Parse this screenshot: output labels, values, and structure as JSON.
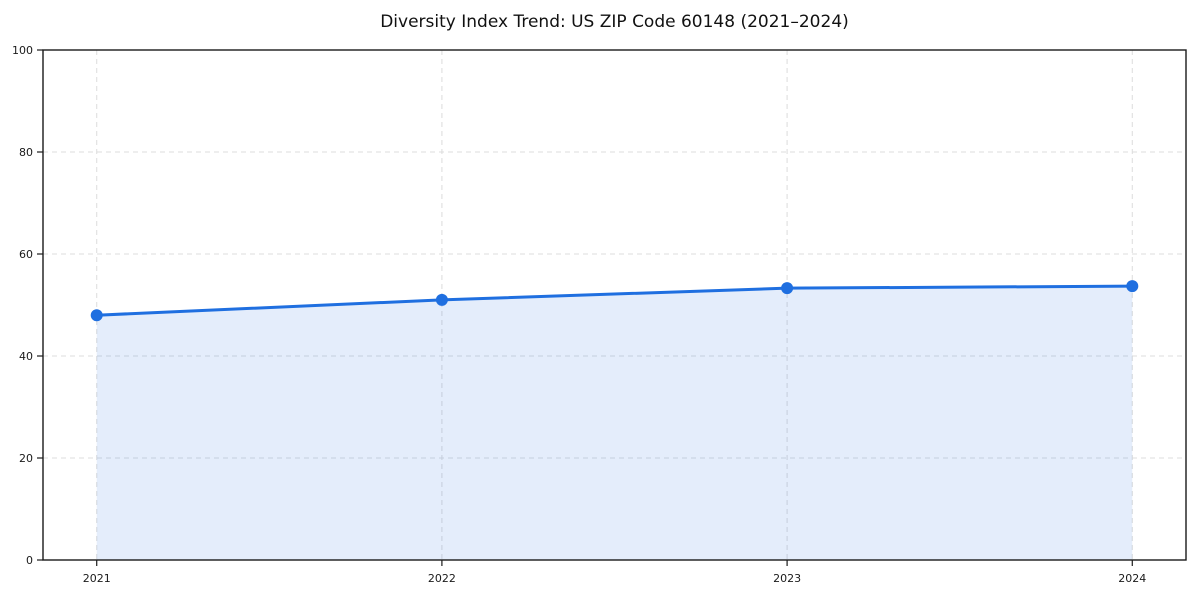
{
  "page": {
    "background": "#ffffff"
  },
  "chart_data": {
    "type": "area",
    "title": "Diversity Index Trend: US ZIP Code 60148 (2021–2024)",
    "categories": [
      "2021",
      "2022",
      "2023",
      "2024"
    ],
    "series": [
      {
        "name": "Diversity Index",
        "values": [
          48,
          51,
          53.3,
          53.7
        ]
      }
    ],
    "xlabel": "",
    "ylabel": "",
    "ylim": [
      0,
      100
    ],
    "yticks": [
      0,
      20,
      40,
      60,
      80,
      100
    ],
    "grid": true,
    "grid_style": "dashed",
    "legend_position": "none",
    "markers": true,
    "colors": {
      "line": "#1f6fe0",
      "marker": "#1f6fe0",
      "area": "rgba(31, 111, 224, 0.12)",
      "grid": "#dcdcdc",
      "axis": "#1a1a1a",
      "tick_text": "#1a1a1a",
      "title_text": "#111111"
    }
  }
}
